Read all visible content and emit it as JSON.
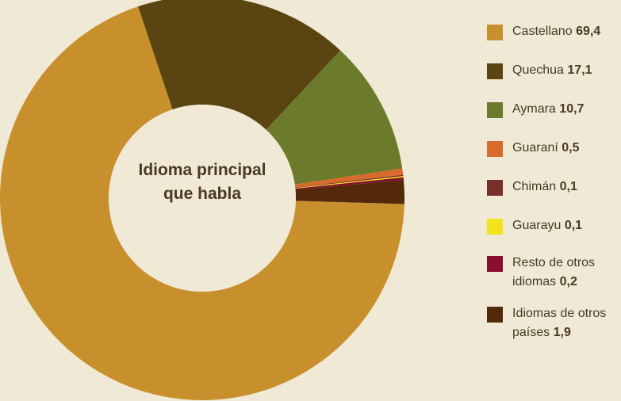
{
  "chart_data": {
    "type": "pie",
    "title": "Idioma principal que habla",
    "title_lines": [
      "Idioma principal",
      "que habla"
    ],
    "slices": [
      {
        "label": "Castellano",
        "value": 69.4,
        "value_text": "69,4",
        "color": "#c8902d"
      },
      {
        "label": "Quechua",
        "value": 17.1,
        "value_text": "17,1",
        "color": "#5a4512"
      },
      {
        "label": "Aymara",
        "value": 10.7,
        "value_text": "10,7",
        "color": "#6b7a2b"
      },
      {
        "label": "Guaraní",
        "value": 0.5,
        "value_text": "0,5",
        "color": "#d96a2c"
      },
      {
        "label": "Chimán",
        "value": 0.1,
        "value_text": "0,1",
        "color": "#7a2f2a"
      },
      {
        "label": "Guarayu",
        "value": 0.1,
        "value_text": "0,1",
        "color": "#f5e31a"
      },
      {
        "label_lines": [
          "Resto de otros",
          "idiomas"
        ],
        "label": "Resto de otros idiomas",
        "value": 0.2,
        "value_text": "0,2",
        "color": "#8a0f2e"
      },
      {
        "label_lines": [
          "Idiomas de otros",
          "países"
        ],
        "label": "Idiomas de otros países",
        "value": 1.9,
        "value_text": "1,9",
        "color": "#54280b"
      }
    ],
    "legend_position": "right"
  }
}
